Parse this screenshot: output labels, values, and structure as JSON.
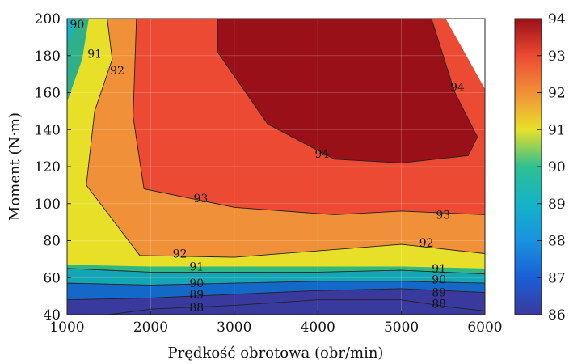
{
  "chart_data": {
    "type": "contour",
    "xlabel": "Prędkość obrotowa (obr/min)",
    "ylabel": "Moment (N·m)",
    "xlim": [
      1000,
      6000
    ],
    "ylim": [
      40,
      200
    ],
    "x_ticks": [
      "1000",
      "2000",
      "3000",
      "4000",
      "5000",
      "6000"
    ],
    "y_ticks": [
      "40",
      "60",
      "80",
      "100",
      "120",
      "140",
      "160",
      "180",
      "200"
    ],
    "colorbar": {
      "min": 86,
      "max": 94,
      "ticks": [
        "86",
        "87",
        "88",
        "89",
        "90",
        "91",
        "92",
        "93",
        "94"
      ]
    },
    "grid": true,
    "levels": [
      88,
      89,
      90,
      91,
      92,
      93,
      94
    ],
    "bands": [
      {
        "level": 88,
        "color": "#3a3a9e",
        "boundary": [
          [
            1000,
            40
          ],
          [
            1500,
            40
          ],
          [
            2000,
            43
          ],
          [
            3000,
            45
          ],
          [
            4000,
            48
          ],
          [
            5000,
            48
          ],
          [
            5600,
            44
          ],
          [
            6000,
            42
          ],
          [
            6000,
            40
          ]
        ]
      },
      {
        "level": 89,
        "color": "#1468c8",
        "boundary": [
          [
            1000,
            48
          ],
          [
            2000,
            49
          ],
          [
            3000,
            51
          ],
          [
            4000,
            53
          ],
          [
            5000,
            54
          ],
          [
            6000,
            52
          ]
        ]
      },
      {
        "level": 90,
        "color": "#14a6b4",
        "boundary": [
          [
            1000,
            57
          ],
          [
            2000,
            56
          ],
          [
            3000,
            57
          ],
          [
            4000,
            58
          ],
          [
            5000,
            58
          ],
          [
            6000,
            57
          ]
        ]
      },
      {
        "level": 91,
        "color": "#2fb880",
        "boundary": [
          [
            1000,
            65
          ],
          [
            2000,
            63
          ],
          [
            3000,
            63
          ],
          [
            4000,
            63
          ],
          [
            5000,
            64
          ],
          [
            6000,
            62
          ]
        ]
      },
      {
        "level": 91.5,
        "color": "#e8e028",
        "boundary": [
          [
            1000,
            67
          ],
          [
            2000,
            66
          ],
          [
            3000,
            66
          ],
          [
            4000,
            66
          ],
          [
            5000,
            66
          ],
          [
            6000,
            65
          ]
        ]
      },
      {
        "level": 92,
        "color": "#f09038",
        "boundary": [
          [
            1480,
            200
          ],
          [
            1540,
            178
          ],
          [
            1330,
            150
          ],
          [
            1230,
            110
          ],
          [
            1870,
            72
          ],
          [
            3000,
            71
          ],
          [
            5000,
            78
          ],
          [
            6000,
            73
          ]
        ]
      },
      {
        "level": 93,
        "color": "#ec4a32",
        "boundary": [
          [
            1830,
            200
          ],
          [
            1790,
            147
          ],
          [
            1920,
            108
          ],
          [
            3000,
            98
          ],
          [
            4200,
            94
          ],
          [
            5000,
            96
          ],
          [
            6000,
            94
          ]
        ]
      },
      {
        "level": 94,
        "color": "#9a1018",
        "boundary": [
          [
            2800,
            200
          ],
          [
            2800,
            182
          ],
          [
            3400,
            143
          ],
          [
            4200,
            124
          ],
          [
            5000,
            122
          ],
          [
            5800,
            126
          ],
          [
            5910,
            136
          ],
          [
            5640,
            160
          ],
          [
            5360,
            200
          ]
        ]
      }
    ],
    "blank_region": [
      [
        5530,
        200
      ],
      [
        6000,
        200
      ],
      [
        6000,
        162
      ]
    ],
    "contour_labels": [
      {
        "text": "90",
        "x": 1120,
        "y": 197
      },
      {
        "text": "91",
        "x": 1330,
        "y": 181
      },
      {
        "text": "92",
        "x": 1600,
        "y": 172
      },
      {
        "text": "93",
        "x": 2600,
        "y": 103
      },
      {
        "text": "94",
        "x": 4050,
        "y": 127
      },
      {
        "text": "94",
        "x": 5670,
        "y": 163
      },
      {
        "text": "92",
        "x": 2350,
        "y": 73
      },
      {
        "text": "91",
        "x": 2550,
        "y": 66
      },
      {
        "text": "90",
        "x": 2550,
        "y": 57
      },
      {
        "text": "89",
        "x": 2550,
        "y": 51
      },
      {
        "text": "88",
        "x": 2550,
        "y": 44
      },
      {
        "text": "93",
        "x": 5500,
        "y": 94
      },
      {
        "text": "92",
        "x": 5300,
        "y": 79
      },
      {
        "text": "91",
        "x": 5450,
        "y": 65
      },
      {
        "text": "90",
        "x": 5450,
        "y": 59
      },
      {
        "text": "89",
        "x": 5450,
        "y": 52
      },
      {
        "text": "88",
        "x": 5450,
        "y": 46
      }
    ],
    "colors": {
      "c86": "#3a3a9e",
      "c87": "#1a5fd6",
      "c88": "#1a92e0",
      "c89": "#14b4c8",
      "c90": "#2fbf90",
      "c91": "#e8e028",
      "c92": "#f09038",
      "c93": "#ec4a32",
      "c94": "#9a1018",
      "teal_top": "#2fb08a"
    }
  }
}
